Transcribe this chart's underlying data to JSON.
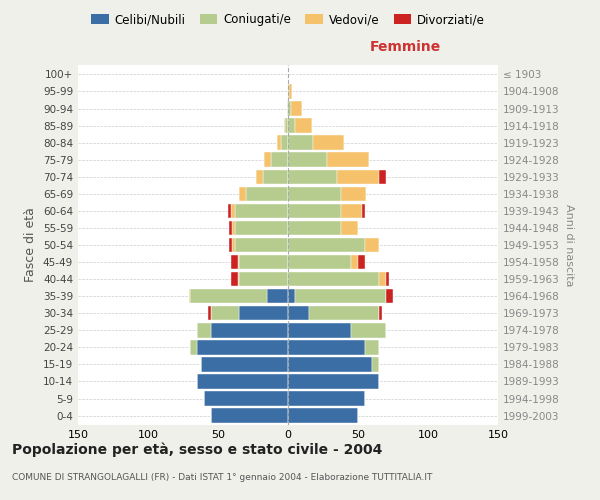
{
  "age_groups": [
    "0-4",
    "5-9",
    "10-14",
    "15-19",
    "20-24",
    "25-29",
    "30-34",
    "35-39",
    "40-44",
    "45-49",
    "50-54",
    "55-59",
    "60-64",
    "65-69",
    "70-74",
    "75-79",
    "80-84",
    "85-89",
    "90-94",
    "95-99",
    "100+"
  ],
  "birth_years": [
    "1999-2003",
    "1994-1998",
    "1989-1993",
    "1984-1988",
    "1979-1983",
    "1974-1978",
    "1969-1973",
    "1964-1968",
    "1959-1963",
    "1954-1958",
    "1949-1953",
    "1944-1948",
    "1939-1943",
    "1934-1938",
    "1929-1933",
    "1924-1928",
    "1919-1923",
    "1914-1918",
    "1909-1913",
    "1904-1908",
    "≤ 1903"
  ],
  "males": {
    "celibi": [
      55,
      60,
      65,
      62,
      65,
      55,
      35,
      15,
      0,
      0,
      0,
      0,
      0,
      0,
      0,
      0,
      0,
      0,
      0,
      0,
      0
    ],
    "coniugati": [
      0,
      0,
      0,
      0,
      5,
      10,
      20,
      55,
      35,
      35,
      38,
      38,
      38,
      30,
      18,
      12,
      5,
      2,
      1,
      0,
      0
    ],
    "vedovi": [
      0,
      0,
      0,
      0,
      0,
      0,
      0,
      1,
      1,
      1,
      2,
      2,
      3,
      5,
      5,
      5,
      3,
      1,
      0,
      0,
      0
    ],
    "divorziati": [
      0,
      0,
      0,
      0,
      0,
      0,
      2,
      0,
      5,
      5,
      2,
      2,
      2,
      0,
      0,
      0,
      0,
      0,
      0,
      0,
      0
    ]
  },
  "females": {
    "nubili": [
      50,
      55,
      65,
      60,
      55,
      45,
      15,
      5,
      0,
      0,
      0,
      0,
      0,
      0,
      0,
      0,
      0,
      0,
      0,
      0,
      0
    ],
    "coniugate": [
      0,
      0,
      0,
      5,
      10,
      25,
      50,
      65,
      65,
      45,
      55,
      38,
      38,
      38,
      35,
      28,
      18,
      5,
      2,
      1,
      0
    ],
    "vedove": [
      0,
      0,
      0,
      0,
      0,
      0,
      0,
      0,
      5,
      5,
      10,
      12,
      15,
      18,
      30,
      30,
      22,
      12,
      8,
      2,
      0
    ],
    "divorziate": [
      0,
      0,
      0,
      0,
      0,
      0,
      2,
      5,
      2,
      5,
      0,
      0,
      2,
      0,
      5,
      0,
      0,
      0,
      0,
      0,
      0
    ]
  },
  "colors": {
    "celibi": "#3a6ea5",
    "coniugati": "#b5cc8e",
    "vedovi": "#f5c26b",
    "divorziati": "#cc2222"
  },
  "xlim": 150,
  "title": "Popolazione per età, sesso e stato civile - 2004",
  "subtitle": "COMUNE DI STRANGOLAGALLI (FR) - Dati ISTAT 1° gennaio 2004 - Elaborazione TUTTITALIA.IT",
  "xlabel_right": "Femmine",
  "ylabel": "Fasce di età",
  "ylabel_right": "Anni di nascita",
  "legend_labels": [
    "Celibi/Nubili",
    "Coniugati/e",
    "Vedovi/e",
    "Divorziati/e"
  ],
  "bg_color": "#f0f0eb",
  "plot_bg": "#ffffff"
}
